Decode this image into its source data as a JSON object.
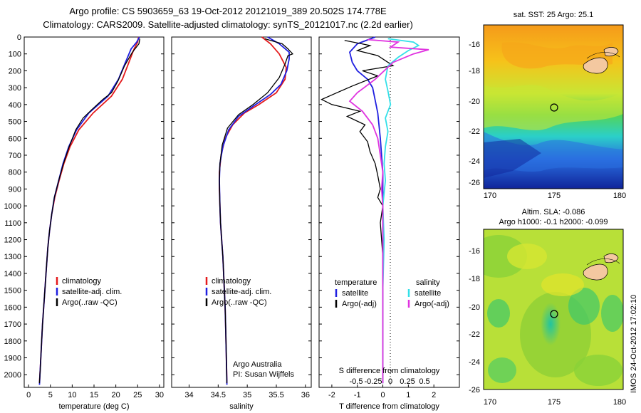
{
  "header": {
    "line1": "Argo profile: CS 5903659_63 19-Oct-2012 20121019_389 20.502S 174.778E",
    "line2": "Climatology: CARS2009. Satellite-adjusted climatology: synTS_20121017.nc (2.2d earlier)"
  },
  "colors": {
    "clim": "#e41a1c",
    "sat": "#1f1fe0",
    "argo": "#000000",
    "sat_s": "#33e0e8",
    "argo_s": "#e033e0"
  },
  "chart_data": [
    {
      "type": "line",
      "name": "temperature-profile",
      "xlabel": "temperature (deg C)",
      "xlim": [
        -1,
        31
      ],
      "ylim": [
        0,
        2075
      ],
      "xticks": [
        0,
        5,
        10,
        15,
        20,
        25,
        30
      ],
      "yticks": [
        0,
        100,
        200,
        300,
        400,
        500,
        600,
        700,
        800,
        900,
        1000,
        1100,
        1200,
        1300,
        1400,
        1500,
        1600,
        1700,
        1800,
        1900,
        2000
      ],
      "legend": [
        "climatology",
        "satellite-adj. clim.",
        "Argo(..raw -QC)"
      ],
      "series": [
        {
          "name": "climatology",
          "color_key": "clim",
          "points": [
            [
              25.2,
              0
            ],
            [
              25.0,
              30
            ],
            [
              24.2,
              70
            ],
            [
              23.0,
              150
            ],
            [
              21.5,
              250
            ],
            [
              19.0,
              350
            ],
            [
              14.8,
              450
            ],
            [
              11.5,
              550
            ],
            [
              9.5,
              650
            ],
            [
              8.1,
              750
            ],
            [
              7.0,
              850
            ],
            [
              6.0,
              950
            ],
            [
              5.3,
              1050
            ],
            [
              4.8,
              1150
            ],
            [
              4.4,
              1250
            ],
            [
              4.0,
              1400
            ],
            [
              3.6,
              1550
            ],
            [
              3.2,
              1700
            ],
            [
              2.9,
              1850
            ],
            [
              2.7,
              1950
            ],
            [
              2.5,
              2050
            ]
          ]
        },
        {
          "name": "satellite-adj. clim.",
          "color_key": "sat",
          "points": [
            [
              25.4,
              0
            ],
            [
              24.8,
              30
            ],
            [
              23.5,
              70
            ],
            [
              22.2,
              150
            ],
            [
              20.6,
              250
            ],
            [
              18.2,
              350
            ],
            [
              13.8,
              450
            ],
            [
              11.0,
              550
            ],
            [
              9.2,
              650
            ],
            [
              7.9,
              750
            ],
            [
              6.9,
              850
            ],
            [
              5.9,
              950
            ],
            [
              5.3,
              1050
            ],
            [
              4.8,
              1150
            ],
            [
              4.4,
              1250
            ],
            [
              4.0,
              1400
            ],
            [
              3.6,
              1550
            ],
            [
              3.2,
              1700
            ],
            [
              2.9,
              1850
            ],
            [
              2.7,
              1950
            ],
            [
              2.5,
              2060
            ]
          ]
        },
        {
          "name": "Argo(..raw -QC)",
          "color_key": "argo",
          "points": [
            [
              25.5,
              10
            ],
            [
              25.3,
              40
            ],
            [
              23.8,
              90
            ],
            [
              22.0,
              170
            ],
            [
              20.5,
              260
            ],
            [
              19.0,
              330
            ],
            [
              17.0,
              370
            ],
            [
              14.5,
              430
            ],
            [
              12.5,
              480
            ],
            [
              10.8,
              550
            ],
            [
              9.3,
              650
            ],
            [
              8.0,
              750
            ],
            [
              6.9,
              850
            ],
            [
              5.9,
              950
            ],
            [
              5.3,
              1050
            ],
            [
              4.8,
              1150
            ],
            [
              4.4,
              1250
            ],
            [
              4.0,
              1400
            ],
            [
              3.6,
              1550
            ],
            [
              3.2,
              1700
            ],
            [
              2.9,
              1850
            ],
            [
              2.7,
              1950
            ],
            [
              2.5,
              2050
            ]
          ]
        }
      ]
    },
    {
      "type": "line",
      "name": "salinity-profile",
      "xlabel": "salinity",
      "xlim": [
        33.7,
        36.1
      ],
      "ylim": [
        0,
        2075
      ],
      "xticks": [
        34,
        34.5,
        35,
        35.5,
        36
      ],
      "legend": [
        "climatology",
        "satellite-adj. clim.",
        "Argo(..raw -QC)"
      ],
      "annotation": [
        "Argo Australia",
        "PI: Susan Wijffels"
      ],
      "series": [
        {
          "name": "climatology",
          "color_key": "clim",
          "points": [
            [
              35.25,
              0
            ],
            [
              35.4,
              40
            ],
            [
              35.55,
              100
            ],
            [
              35.67,
              180
            ],
            [
              35.65,
              250
            ],
            [
              35.5,
              330
            ],
            [
              35.2,
              400
            ],
            [
              34.95,
              450
            ],
            [
              34.75,
              520
            ],
            [
              34.62,
              600
            ],
            [
              34.55,
              700
            ],
            [
              34.52,
              800
            ],
            [
              34.52,
              900
            ],
            [
              34.53,
              1000
            ],
            [
              34.54,
              1100
            ],
            [
              34.56,
              1200
            ],
            [
              34.58,
              1300
            ],
            [
              34.6,
              1450
            ],
            [
              34.62,
              1600
            ],
            [
              34.63,
              1750
            ],
            [
              34.64,
              1900
            ],
            [
              34.65,
              2050
            ]
          ]
        },
        {
          "name": "satellite-adj. clim.",
          "color_key": "sat",
          "points": [
            [
              35.35,
              0
            ],
            [
              35.55,
              40
            ],
            [
              35.72,
              90
            ],
            [
              35.72,
              130
            ],
            [
              35.68,
              200
            ],
            [
              35.58,
              280
            ],
            [
              35.4,
              340
            ],
            [
              35.1,
              410
            ],
            [
              34.85,
              470
            ],
            [
              34.68,
              550
            ],
            [
              34.58,
              650
            ],
            [
              34.53,
              750
            ],
            [
              34.52,
              850
            ],
            [
              34.53,
              1000
            ],
            [
              34.54,
              1100
            ],
            [
              34.56,
              1200
            ],
            [
              34.58,
              1300
            ],
            [
              34.6,
              1450
            ],
            [
              34.62,
              1600
            ],
            [
              34.63,
              1750
            ],
            [
              34.64,
              1900
            ],
            [
              34.65,
              2060
            ]
          ]
        },
        {
          "name": "Argo(..raw -QC)",
          "color_key": "argo",
          "points": [
            [
              35.3,
              10
            ],
            [
              35.6,
              40
            ],
            [
              35.7,
              70
            ],
            [
              35.78,
              100
            ],
            [
              35.7,
              110
            ],
            [
              35.65,
              160
            ],
            [
              35.55,
              240
            ],
            [
              35.35,
              330
            ],
            [
              35.1,
              400
            ],
            [
              34.85,
              460
            ],
            [
              34.66,
              540
            ],
            [
              34.57,
              640
            ],
            [
              34.53,
              750
            ],
            [
              34.52,
              850
            ],
            [
              34.53,
              1000
            ],
            [
              34.54,
              1100
            ],
            [
              34.56,
              1200
            ],
            [
              34.58,
              1300
            ],
            [
              34.6,
              1450
            ],
            [
              34.62,
              1600
            ],
            [
              34.63,
              1750
            ],
            [
              34.64,
              1900
            ],
            [
              34.65,
              2050
            ]
          ]
        }
      ]
    },
    {
      "type": "line",
      "name": "difference-profile",
      "xlabel": "T difference from climatology",
      "top_axis_label": "S difference from climatology",
      "xlim": [
        -2.5,
        3
      ],
      "ylim": [
        0,
        2075
      ],
      "xticks": [
        -2,
        -1,
        0,
        1,
        2
      ],
      "top_ticks": [
        -0.5,
        -0.25,
        0,
        0.25,
        0.5
      ],
      "legend_temperature": [
        "temperature",
        "satellite",
        "Argo(-adj)"
      ],
      "legend_salinity": [
        "salinity",
        "satellite",
        "Argo(-adj)"
      ],
      "series": [
        {
          "name": "temperature satellite",
          "color_key": "sat",
          "points": [
            [
              -0.3,
              0
            ],
            [
              -1.0,
              40
            ],
            [
              -1.3,
              90
            ],
            [
              -1.2,
              150
            ],
            [
              -1.0,
              200
            ],
            [
              -0.6,
              250
            ],
            [
              -0.4,
              300
            ],
            [
              -0.2,
              450
            ],
            [
              -0.1,
              600
            ],
            [
              0,
              800
            ],
            [
              0,
              2050
            ]
          ]
        },
        {
          "name": "temperature Argo(-adj)",
          "color_key": "argo",
          "points": [
            [
              -1.5,
              20
            ],
            [
              -0.5,
              50
            ],
            [
              -1.0,
              80
            ],
            [
              -0.2,
              110
            ],
            [
              0.4,
              170
            ],
            [
              -0.8,
              200
            ],
            [
              -0.2,
              230
            ],
            [
              -1.2,
              290
            ],
            [
              -1.8,
              330
            ],
            [
              -2.4,
              370
            ],
            [
              -2.0,
              400
            ],
            [
              -0.9,
              440
            ],
            [
              -1.4,
              470
            ],
            [
              -0.7,
              520
            ],
            [
              -0.9,
              560
            ],
            [
              -0.6,
              620
            ],
            [
              -0.5,
              680
            ],
            [
              -0.3,
              750
            ],
            [
              -0.2,
              820
            ],
            [
              -0.1,
              900
            ],
            [
              -0.2,
              950
            ],
            [
              0,
              1000
            ],
            [
              -0.1,
              1100
            ],
            [
              0,
              1300
            ],
            [
              0,
              2050
            ]
          ]
        },
        {
          "name": "salinity satellite",
          "color_key": "sat_s",
          "points": [
            [
              0.2,
              10
            ],
            [
              1.2,
              30
            ],
            [
              1.4,
              50
            ],
            [
              1.0,
              80
            ],
            [
              0.6,
              120
            ],
            [
              0.2,
              170
            ],
            [
              0.1,
              250
            ],
            [
              0.2,
              320
            ],
            [
              0.3,
              400
            ],
            [
              0.1,
              480
            ],
            [
              0.2,
              560
            ],
            [
              0.1,
              650
            ],
            [
              0.05,
              750
            ],
            [
              0.1,
              850
            ],
            [
              0,
              1000
            ],
            [
              0.05,
              1200
            ],
            [
              0,
              1500
            ],
            [
              0,
              2050
            ]
          ]
        },
        {
          "name": "salinity Argo(-adj)",
          "color_key": "argo_s",
          "points": [
            [
              -0.6,
              15
            ],
            [
              0.6,
              30
            ],
            [
              0.3,
              60
            ],
            [
              1.8,
              75
            ],
            [
              1.2,
              100
            ],
            [
              0.4,
              150
            ],
            [
              -0.3,
              250
            ],
            [
              -1.0,
              330
            ],
            [
              -1.3,
              380
            ],
            [
              -0.8,
              440
            ],
            [
              -0.4,
              520
            ],
            [
              -0.2,
              600
            ],
            [
              -0.1,
              700
            ],
            [
              0,
              800
            ],
            [
              -0.05,
              900
            ],
            [
              0,
              1000
            ],
            [
              0,
              2050
            ]
          ]
        }
      ]
    }
  ],
  "maps": {
    "sst": {
      "title": "sat. SST: 25 Argo: 25.1",
      "xticks": [
        "170",
        "175",
        "180"
      ],
      "yticks": [
        "-16",
        "-18",
        "-20",
        "-22",
        "-24",
        "-26"
      ]
    },
    "sla": {
      "title1": "Altim. SLA: -0.086",
      "title2": "Argo h1000: -0.1 h2000: -0.099",
      "xticks": [
        "170",
        "175",
        "180"
      ],
      "yticks": [
        "-16",
        "-18",
        "-20",
        "-22",
        "-24",
        "-26"
      ]
    }
  },
  "imos_label": "IMOS 24-Oct-2012 17:02:10"
}
